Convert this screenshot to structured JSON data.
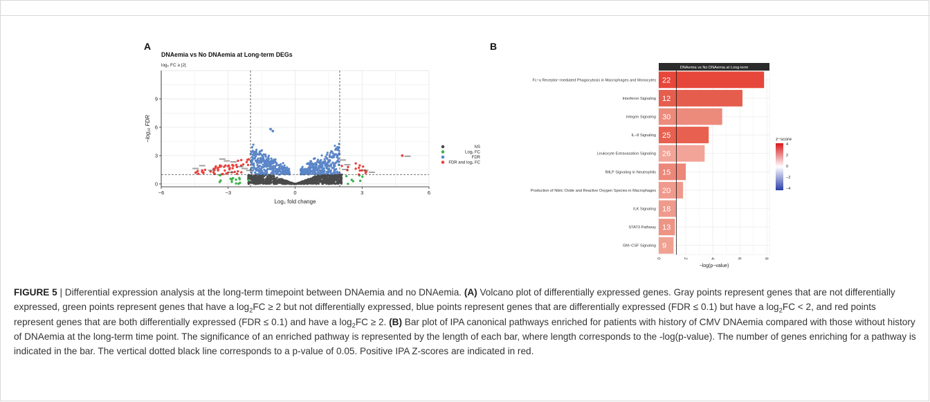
{
  "panel_a": {
    "letter": "A",
    "title": "DNAemia vs No DNAemia at Long-term DEGs",
    "subtitle": "log₂ FC ≥ |2|",
    "legend": [
      "NS",
      "Log₂ FC",
      "FDR",
      "FDR and log₂ FC"
    ],
    "colors": {
      "ns": "#4a4a4a",
      "fc": "#3cb34a",
      "fdr": "#5b86c8",
      "both": "#e8413c"
    }
  },
  "panel_b": {
    "letter": "B",
    "header": "DNAemia vs No DNAemia at Long-term",
    "legend_title": "z−score",
    "legend_ticks": [
      "4",
      "2",
      "0",
      "−2",
      "−4"
    ]
  },
  "caption": {
    "label": "FIGURE 5",
    "sep": " | ",
    "intro": "Differential expression analysis at the long-term timepoint between DNAemia and no DNAemia. ",
    "a_tag": "(A)",
    "a_text": " Volcano plot of differentially expressed genes. Gray points represent genes that are not differentially expressed, green points represent genes that have a log",
    "a_text2": "FC ≥ 2 but not differentially expressed, blue points represent genes that are differentially expressed (FDR ≤ 0.1) but have a log",
    "a_text3": "FC < 2, and red points represent genes that are both differentially expressed (FDR ≤ 0.1) and have a log",
    "a_text4": "FC ≥ 2. ",
    "b_tag": "(B)",
    "b_text": " Bar plot of IPA canonical pathways enriched for patients with history of CMV DNAemia compared with those without history of DNAemia at the long-term time point. The significance of an enriched pathway is represented by the length of each bar, where length corresponds to the -log(p-value). The number of genes enriching for a pathway is indicated in the bar. The vertical dotted black line corresponds to a p-value of 0.05. Positive IPA Z-scores are indicated in red.",
    "sub2": "2"
  },
  "chart_data": [
    {
      "type": "scatter",
      "title": "DNAemia vs No DNAemia at Long-term DEGs",
      "subtitle": "log₂ FC ≥ |2|",
      "xlabel": "Log₂ fold change",
      "ylabel": "−log₁₀ FDR",
      "xlim": [
        -6,
        6
      ],
      "ylim": [
        -0.3,
        12
      ],
      "xticks": [
        -6,
        -3,
        0,
        3,
        6
      ],
      "yticks": [
        0,
        3,
        6,
        9
      ],
      "thresholds": {
        "x": [
          -2,
          2
        ],
        "y": 1
      },
      "legend_position": "right",
      "series": [
        {
          "name": "NS",
          "key": "ns"
        },
        {
          "name": "Log₂ FC",
          "key": "fc"
        },
        {
          "name": "FDR",
          "key": "fdr"
        },
        {
          "name": "FDR and log₂ FC",
          "key": "both"
        }
      ],
      "highlight_points": [
        [
          -1.1,
          5.8
        ],
        [
          -1.0,
          5.6
        ],
        [
          4.8,
          3.0
        ]
      ]
    },
    {
      "type": "bar",
      "orientation": "horizontal",
      "title": "DNAemia vs No DNAemia at Long-term",
      "xlabel": "−log(p−value)",
      "xlim": [
        0,
        8.2
      ],
      "xticks": [
        0,
        2,
        4,
        6,
        8
      ],
      "threshold": 1.3,
      "categories": [
        "Fc−γ Receptor−mediated Phagocytosis in Macrophages and Monocytes",
        "Interferon Signaling",
        "Integrin Signaling",
        "IL−8 Signaling",
        "Leukocyte Extravasation Signaling",
        "fMLP Signaling in Neutrophils",
        "Production of Nitric Oxide and Reactive Oxygen Species in Macrophages",
        "ILK Signaling",
        "STAT3 Pathway",
        "GM−CSF Signaling"
      ],
      "values": [
        7.8,
        6.2,
        4.7,
        3.7,
        3.4,
        2.0,
        1.8,
        1.3,
        1.2,
        1.1
      ],
      "gene_counts": [
        22,
        12,
        30,
        25,
        26,
        15,
        20,
        18,
        13,
        9
      ],
      "bar_colors": [
        "#e7463a",
        "#e55d4d",
        "#ec8a7c",
        "#e8604f",
        "#f1a497",
        "#ed8779",
        "#ef9a8c",
        "#ef9a8c",
        "#ee9485",
        "#f0a192"
      ],
      "legend_title": "z−score",
      "legend_range": [
        -4,
        4
      ],
      "legend_position": "right"
    }
  ]
}
